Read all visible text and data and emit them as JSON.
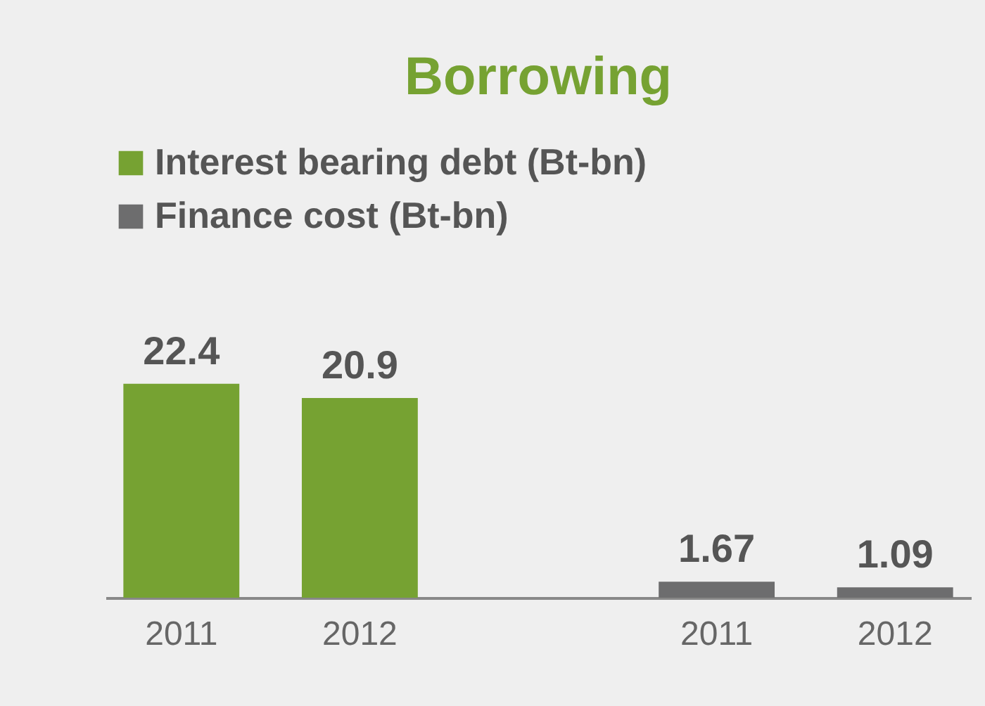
{
  "chart_data": {
    "type": "bar",
    "title": "Borrowing",
    "categories": [
      "2011",
      "2012",
      null,
      "2011",
      "2012"
    ],
    "series": [
      {
        "name": "Interest bearing debt (Bt-bn)",
        "color": "#76a232",
        "values": [
          22.4,
          20.9,
          null,
          null,
          null
        ]
      },
      {
        "name": "Finance cost (Bt-bn)",
        "color": "#6d6d6e",
        "values": [
          null,
          null,
          null,
          1.67,
          1.09
        ]
      }
    ],
    "data_labels": true,
    "legend": "top left",
    "grid": false
  }
}
